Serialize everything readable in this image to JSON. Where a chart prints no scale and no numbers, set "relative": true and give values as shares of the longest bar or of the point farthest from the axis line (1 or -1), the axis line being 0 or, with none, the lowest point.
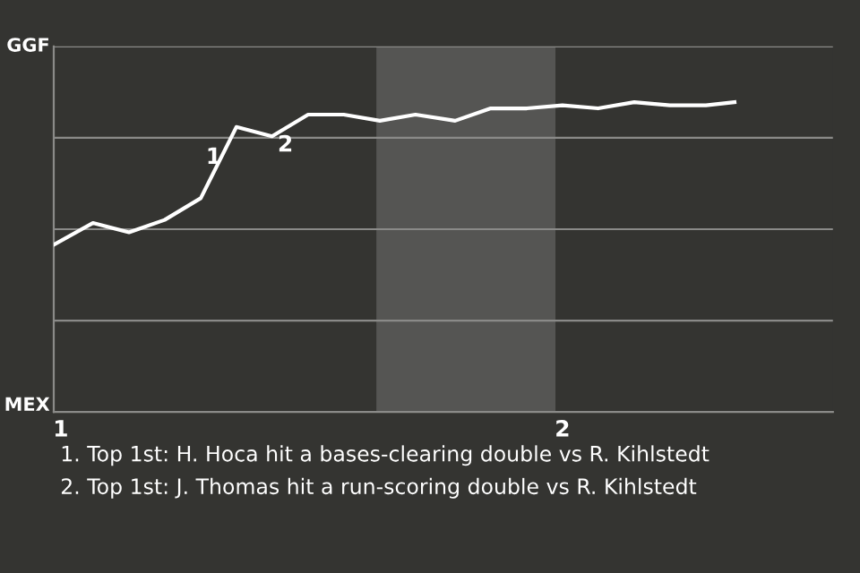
{
  "chart_data": {
    "type": "line",
    "x": [
      0.986,
      1.064,
      1.136,
      1.207,
      1.279,
      1.35,
      1.421,
      1.493,
      1.564,
      1.636,
      1.707,
      1.786,
      1.857,
      1.929,
      2.0,
      2.071,
      2.143,
      2.214,
      2.286,
      2.343
    ],
    "series": [
      {
        "color": "#ffffff",
        "values": [
          0.54,
          0.61,
          0.58,
          0.62,
          0.69,
          0.92,
          0.89,
          0.96,
          0.96,
          0.94,
          0.96,
          0.94,
          0.98,
          0.98,
          0.99,
          0.98,
          1,
          0.99,
          0.99,
          1
        ]
      }
    ],
    "relative": true,
    "xlim": [
      0.986,
      2.539
    ],
    "xticks": [
      1,
      2
    ],
    "grid": "y",
    "line_style": "solid",
    "marker": "none",
    "bands": [
      {
        "axis": "x",
        "from": 1.629,
        "to": 1.986,
        "color": "#555553"
      }
    ],
    "annotations": [
      "GGF",
      "MEX",
      {
        "text": "1",
        "x": 1.35,
        "y": 0.92
      },
      {
        "text": "2",
        "x": 1.493,
        "y": 0.96
      },
      "1. Top 1st: H. Hoca hit a bases-clearing double vs R. Kihlstedt",
      "2. Top 1st: J. Thomas hit a run-scoring double vs R. Kihlstedt"
    ]
  }
}
